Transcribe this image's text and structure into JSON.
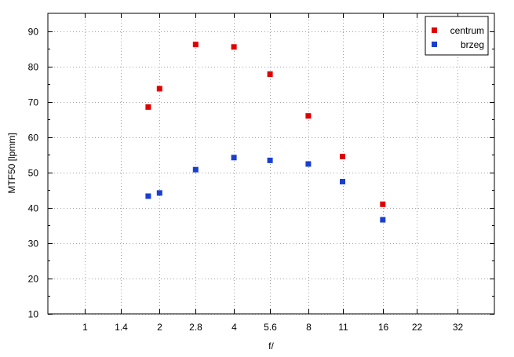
{
  "chart_data": {
    "type": "scatter",
    "xlabel": "f/",
    "ylabel": "MTF50 [lpmm]",
    "x_scale": "log2",
    "xlim": [
      0.707,
      45.25
    ],
    "ylim": [
      10,
      95
    ],
    "x_ticks": [
      {
        "value": 1,
        "label": "1"
      },
      {
        "value": 1.4,
        "label": "1.4"
      },
      {
        "value": 2,
        "label": "2"
      },
      {
        "value": 2.8,
        "label": "2.8"
      },
      {
        "value": 4,
        "label": "4"
      },
      {
        "value": 5.6,
        "label": "5.6"
      },
      {
        "value": 8,
        "label": "8"
      },
      {
        "value": 11,
        "label": "11"
      },
      {
        "value": 16,
        "label": "16"
      },
      {
        "value": 22,
        "label": "22"
      },
      {
        "value": 32,
        "label": "32"
      }
    ],
    "y_ticks": [
      10,
      20,
      30,
      40,
      50,
      60,
      70,
      80,
      90
    ],
    "grid": true,
    "legend_position": "top-right",
    "series": [
      {
        "name": "centrum",
        "color": "#e00000",
        "points": [
          {
            "x": 1.8,
            "y": 68.5
          },
          {
            "x": 2,
            "y": 73.7
          },
          {
            "x": 2.8,
            "y": 86.2
          },
          {
            "x": 4,
            "y": 85.5
          },
          {
            "x": 5.6,
            "y": 77.8
          },
          {
            "x": 8,
            "y": 66.0
          },
          {
            "x": 11,
            "y": 54.5
          },
          {
            "x": 16,
            "y": 41.0
          }
        ]
      },
      {
        "name": "brzeg",
        "color": "#1a3fd0",
        "points": [
          {
            "x": 1.8,
            "y": 43.3
          },
          {
            "x": 2,
            "y": 44.2
          },
          {
            "x": 2.8,
            "y": 50.8
          },
          {
            "x": 4,
            "y": 54.2
          },
          {
            "x": 5.6,
            "y": 53.4
          },
          {
            "x": 8,
            "y": 52.4
          },
          {
            "x": 11,
            "y": 47.4
          },
          {
            "x": 16,
            "y": 36.6
          }
        ]
      }
    ]
  }
}
